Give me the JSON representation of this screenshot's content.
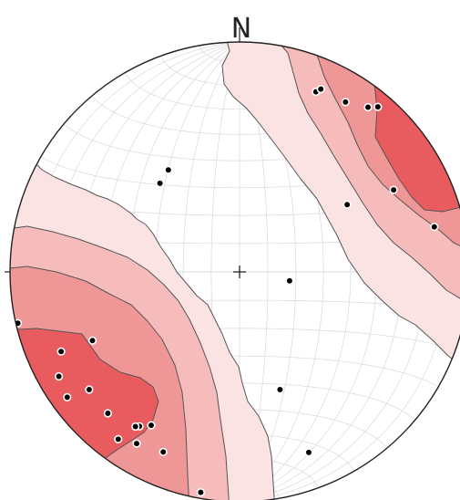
{
  "chart_data": {
    "type": "scatter",
    "title": "",
    "plot_kind": "lower-hemisphere equal-area stereonet (Schmidt net) of poles with Kamb-style density contours",
    "north_label": "N",
    "center_mark": "+",
    "grid": true,
    "colors": {
      "level_1": "#fbe3e3",
      "level_2": "#f6bcbc",
      "level_3": "#ef9696",
      "level_4": "#e85b5f",
      "poles": "#000000",
      "outline": "#222222"
    },
    "density_levels": [
      1,
      2,
      3,
      4
    ],
    "poles": [
      {
        "trend": 325,
        "plunge": 45
      },
      {
        "trend": 318,
        "plunge": 47
      },
      {
        "trend": 23,
        "plunge": 16
      },
      {
        "trend": 24,
        "plunge": 14
      },
      {
        "trend": 32,
        "plunge": 14
      },
      {
        "trend": 38,
        "plunge": 10
      },
      {
        "trend": 40,
        "plunge": 7
      },
      {
        "trend": 58,
        "plunge": 44
      },
      {
        "trend": 62,
        "plunge": 25
      },
      {
        "trend": 77,
        "plunge": 14
      },
      {
        "trend": 100,
        "plunge": 72
      },
      {
        "trend": 159,
        "plunge": 17
      },
      {
        "trend": 161,
        "plunge": 45
      },
      {
        "trend": 190,
        "plunge": 3
      },
      {
        "trend": 203,
        "plunge": 16
      },
      {
        "trend": 210,
        "plunge": 24
      },
      {
        "trend": 211,
        "plunge": 14
      },
      {
        "trend": 213,
        "plunge": 21
      },
      {
        "trend": 214,
        "plunge": 20
      },
      {
        "trend": 216,
        "plunge": 11
      },
      {
        "trend": 223,
        "plunge": 17
      },
      {
        "trend": 232,
        "plunge": 18
      },
      {
        "trend": 234,
        "plunge": 8
      },
      {
        "trend": 240,
        "plunge": 10
      },
      {
        "trend": 245,
        "plunge": 30
      },
      {
        "trend": 246,
        "plunge": 16
      },
      {
        "trend": 257,
        "plunge": 1
      }
    ]
  }
}
